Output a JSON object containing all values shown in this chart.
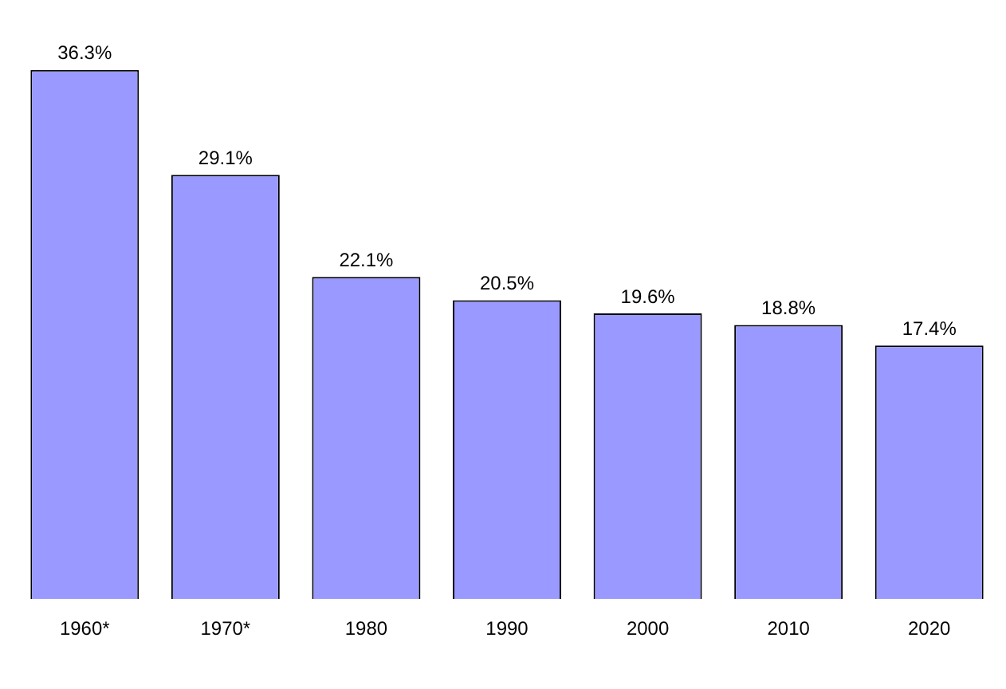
{
  "chart_data": {
    "type": "bar",
    "categories": [
      "1960*",
      "1970*",
      "1980",
      "1990",
      "2000",
      "2010",
      "2020"
    ],
    "values": [
      36.3,
      29.1,
      22.1,
      20.5,
      19.6,
      18.8,
      17.4
    ],
    "value_labels": [
      "36.3%",
      "29.1%",
      "22.1%",
      "20.5%",
      "19.6%",
      "18.8%",
      "17.4%"
    ],
    "color": "#9999ff",
    "grid": false,
    "legend": false
  }
}
